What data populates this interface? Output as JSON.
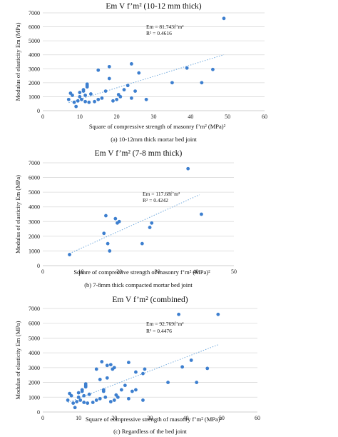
{
  "chart_data": [
    {
      "type": "scatter",
      "title": "Em V f’m² (10-12 mm thick)",
      "xlabel": "Square of compressive strength of masonry f’m² (MPa)²",
      "ylabel": "Modulus of elasticity Em (MPa)",
      "caption": "(a) 10-12mm thick mortar bed joint",
      "equation": "Em = 81.743f’m²",
      "r2": "R² = 0.4616",
      "xlim": [
        0,
        60
      ],
      "ylim": [
        0,
        7000
      ],
      "xticks": [
        "0",
        "10",
        "20",
        "30",
        "40",
        "50",
        "60"
      ],
      "yticks": [
        "0",
        "1000",
        "2000",
        "3000",
        "4000",
        "5000",
        "6000",
        "7000"
      ],
      "grid": "horizontal",
      "trend_slope": 81.743,
      "trend_xrange": [
        7,
        49
      ],
      "x": [
        7,
        7.5,
        8,
        8.5,
        9,
        9.5,
        10,
        10,
        10.5,
        11,
        11,
        11.5,
        11.5,
        12,
        12,
        12,
        12.5,
        13,
        14,
        15,
        15,
        16,
        17,
        18,
        18,
        19,
        20,
        20.5,
        21,
        22,
        23,
        24,
        24,
        25,
        26,
        28,
        35,
        39,
        43,
        46,
        49
      ],
      "y": [
        800,
        1250,
        1100,
        600,
        300,
        700,
        1000,
        1300,
        800,
        1400,
        1500,
        650,
        1100,
        1700,
        1800,
        1900,
        600,
        1200,
        650,
        800,
        2900,
        900,
        1400,
        2300,
        3150,
        700,
        800,
        1150,
        1000,
        1500,
        1800,
        900,
        3350,
        1400,
        2700,
        800,
        2000,
        3050,
        2000,
        2950,
        6600
      ]
    },
    {
      "type": "scatter",
      "title": "Em V f’m² (7-8 mm thick)",
      "xlabel": "Square of compressive strength of masonry f’m² (MPa)²",
      "ylabel": "Modulus of elasticity Em (MPa)",
      "caption": "(b) 7-8mm thick compacted mortar bed joint",
      "equation": "Em = 117.68f’m²",
      "r2": "R² = 0.4242",
      "xlim": [
        0,
        50
      ],
      "ylim": [
        0,
        7000
      ],
      "xticks": [
        "0",
        "10",
        "20",
        "30",
        "40",
        "50"
      ],
      "yticks": [
        "0",
        "1000",
        "2000",
        "3000",
        "4000",
        "5000",
        "6000",
        "7000"
      ],
      "grid": "horizontal",
      "trend_slope": 117.68,
      "trend_xrange": [
        7,
        41
      ],
      "x": [
        7,
        16,
        16.5,
        17,
        17.5,
        19,
        19.5,
        20,
        26,
        28,
        28.5,
        38,
        41.5
      ],
      "y": [
        750,
        2200,
        3400,
        1500,
        1000,
        3200,
        2900,
        3000,
        1500,
        2600,
        2900,
        6600,
        3500
      ]
    },
    {
      "type": "scatter",
      "title": "Em V f’m² (combined)",
      "xlabel": "Square of compressive strength of masonry f’m² (MPa)²",
      "ylabel": "Modulus of elasticity Em (MPa)",
      "caption": "(c) Regardless of the bed joint",
      "equation": "Em = 92.769f’m²",
      "r2": "R² = 0.4476",
      "xlim": [
        0,
        60
      ],
      "ylim": [
        0,
        7000
      ],
      "xticks": [
        "0",
        "10",
        "20",
        "30",
        "40",
        "50",
        "60"
      ],
      "yticks": [
        "0",
        "1000",
        "2000",
        "3000",
        "4000",
        "5000",
        "6000",
        "7000"
      ],
      "grid": "horizontal",
      "trend_slope": 92.769,
      "trend_xrange": [
        7,
        49
      ],
      "x": [
        7,
        7.5,
        8,
        8.5,
        9,
        9.5,
        10,
        10,
        10.5,
        11,
        11,
        11.5,
        11.5,
        12,
        12,
        12,
        12.5,
        13,
        14,
        15,
        15,
        16,
        17,
        18,
        18,
        19,
        20,
        20.5,
        21,
        22,
        23,
        24,
        24,
        25,
        26,
        28,
        35,
        39,
        43,
        46,
        49,
        16,
        16.5,
        17,
        17.5,
        19,
        19.5,
        20,
        26,
        28,
        28.5,
        38,
        41.5
      ],
      "y": [
        800,
        1250,
        1100,
        600,
        300,
        700,
        1000,
        1300,
        800,
        1400,
        1500,
        650,
        1100,
        1700,
        1800,
        1900,
        600,
        1200,
        650,
        800,
        2900,
        900,
        1400,
        2300,
        3150,
        700,
        800,
        1150,
        1000,
        1500,
        1800,
        900,
        3350,
        1400,
        2700,
        800,
        2000,
        3050,
        2000,
        2950,
        6600,
        2200,
        3400,
        1500,
        1000,
        3200,
        2900,
        3000,
        1500,
        2600,
        2900,
        6600,
        3500
      ]
    }
  ]
}
